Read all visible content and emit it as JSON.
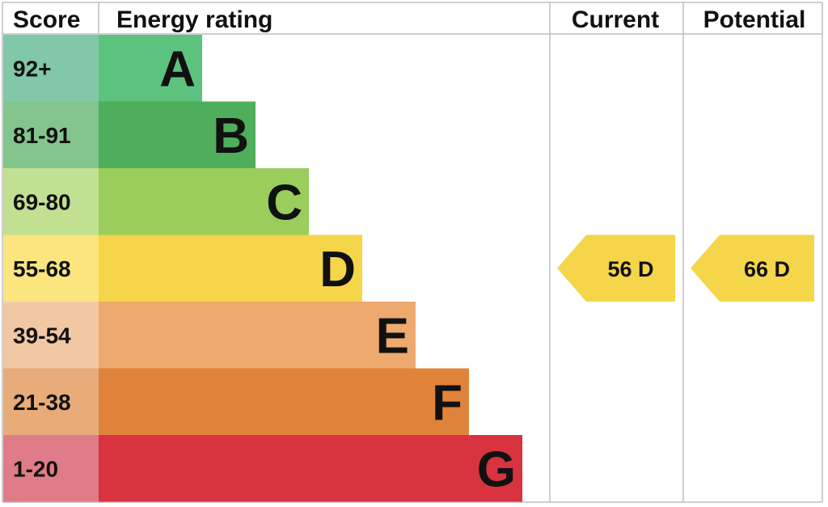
{
  "chart_data": {
    "type": "bar",
    "headers": {
      "score": "Score",
      "rating": "Energy rating",
      "current": "Current",
      "potential": "Potential"
    },
    "bands": [
      {
        "letter": "A",
        "range": "92+",
        "color": "#5cc37f",
        "score_color": "#80c8a8"
      },
      {
        "letter": "B",
        "range": "81-91",
        "color": "#4fae5b",
        "score_color": "#84c48d"
      },
      {
        "letter": "C",
        "range": "69-80",
        "color": "#9acd5b",
        "score_color": "#c2e092"
      },
      {
        "letter": "D",
        "range": "55-68",
        "color": "#f5d54a",
        "score_color": "#fae57f"
      },
      {
        "letter": "E",
        "range": "39-54",
        "color": "#eeaa6e",
        "score_color": "#f2c8a4"
      },
      {
        "letter": "F",
        "range": "21-38",
        "color": "#e0833a",
        "score_color": "#e8ab7a"
      },
      {
        "letter": "G",
        "range": "1-20",
        "color": "#d8333f",
        "score_color": "#e07b88"
      }
    ],
    "current": {
      "score": 56,
      "band": "D"
    },
    "potential": {
      "score": 66,
      "band": "D"
    },
    "arrow_color": "#f5d54a"
  }
}
